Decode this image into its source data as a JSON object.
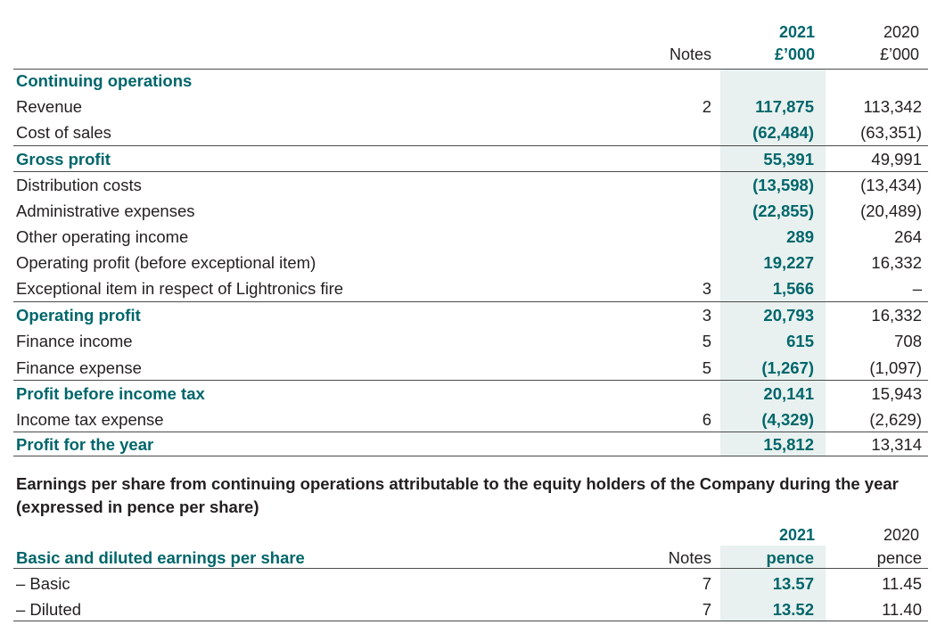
{
  "header": {
    "notes": "Notes",
    "col2021_year": "2021",
    "col2021_unit": "£’000",
    "col2020_year": "2020",
    "col2020_unit": "£’000"
  },
  "section_title": "Continuing operations",
  "rows": [
    {
      "label": "Revenue",
      "notes": "2",
      "v2021": "117,875",
      "v2020": "113,342",
      "bold": false
    },
    {
      "label": "Cost of sales",
      "notes": "",
      "v2021": "(62,484)",
      "v2020": "(63,351)",
      "bold": false
    },
    {
      "label": "Gross profit",
      "notes": "",
      "v2021": "55,391",
      "v2020": "49,991",
      "bold": true
    },
    {
      "label": "Distribution costs",
      "notes": "",
      "v2021": "(13,598)",
      "v2020": "(13,434)",
      "bold": false
    },
    {
      "label": "Administrative expenses",
      "notes": "",
      "v2021": "(22,855)",
      "v2020": "(20,489)",
      "bold": false
    },
    {
      "label": "Other operating income",
      "notes": "",
      "v2021": "289",
      "v2020": "264",
      "bold": false
    },
    {
      "label": "Operating profit (before exceptional item)",
      "notes": "",
      "v2021": "19,227",
      "v2020": "16,332",
      "bold": false
    },
    {
      "label": "Exceptional item in respect of Lightronics fire",
      "notes": "3",
      "v2021": "1,566",
      "v2020": "–",
      "bold": false
    },
    {
      "label": "Operating profit",
      "notes": "3",
      "v2021": "20,793",
      "v2020": "16,332",
      "bold": true
    },
    {
      "label": "Finance income",
      "notes": "5",
      "v2021": "615",
      "v2020": "708",
      "bold": false
    },
    {
      "label": "Finance expense",
      "notes": "5",
      "v2021": "(1,267)",
      "v2020": "(1,097)",
      "bold": false
    },
    {
      "label": "Profit before income tax",
      "notes": "",
      "v2021": "20,141",
      "v2020": "15,943",
      "bold": true
    },
    {
      "label": "Income tax expense",
      "notes": "6",
      "v2021": "(4,329)",
      "v2020": "(2,629)",
      "bold": false
    },
    {
      "label": "Profit for the year",
      "notes": "",
      "v2021": "15,812",
      "v2020": "13,314",
      "bold": true
    }
  ],
  "eps": {
    "title": "Earnings per share from continuing operations attributable to the equity holders of the Company during the year (expressed in pence per share)",
    "header": {
      "label": "Basic and diluted earnings per share",
      "notes": "Notes",
      "col2021_year": "2021",
      "col2021_unit": "pence",
      "col2020_year": "2020",
      "col2020_unit": "pence"
    },
    "rows": [
      {
        "label": "– Basic",
        "notes": "7",
        "v2021": "13.57",
        "v2020": "11.45"
      },
      {
        "label": "– Diluted",
        "notes": "7",
        "v2021": "13.52",
        "v2020": "11.40"
      }
    ]
  }
}
